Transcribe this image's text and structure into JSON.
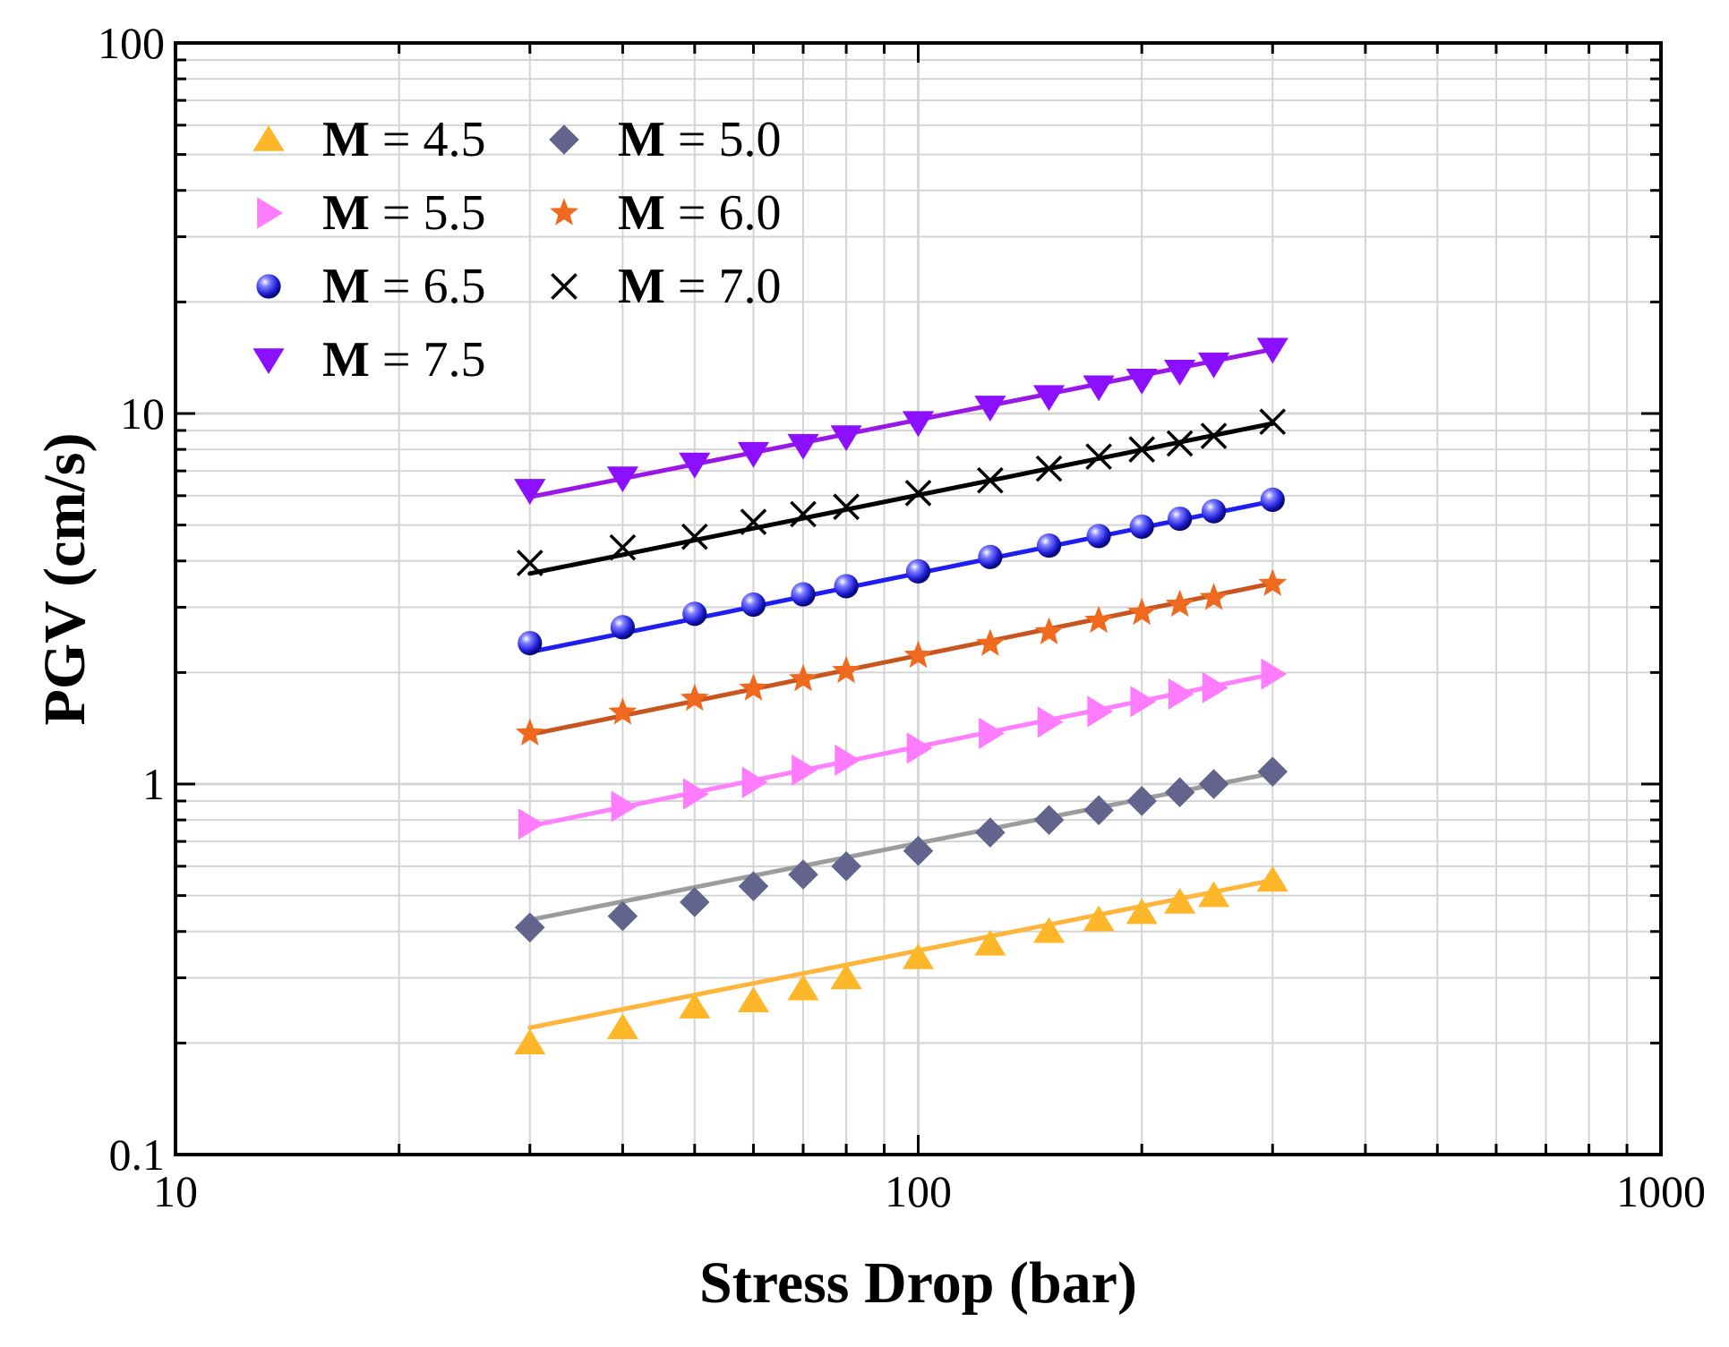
{
  "chart_data": {
    "type": "scatter",
    "xlabel": "Stress Drop (bar)",
    "ylabel": "PGV (cm/s)",
    "xscale": "log",
    "yscale": "log",
    "xlim": [
      10,
      1000
    ],
    "ylim": [
      0.1,
      100
    ],
    "grid": true,
    "legend_position": "top-left",
    "x_ticks": [
      "10",
      "100",
      "1000"
    ],
    "y_ticks": [
      "0.1",
      "1",
      "10",
      "100"
    ],
    "x": [
      30,
      40,
      50,
      60,
      70,
      80,
      100,
      125,
      150,
      175,
      200,
      225,
      250,
      300
    ],
    "series": [
      {
        "name": "M = 4.5",
        "label_bold": "M",
        "label_rest": " = 4.5",
        "marker": "triangle-up",
        "color": "#FFB72A",
        "line_color": "#FFB43C",
        "values": [
          0.2,
          0.22,
          0.25,
          0.26,
          0.28,
          0.3,
          0.34,
          0.37,
          0.4,
          0.43,
          0.45,
          0.48,
          0.5,
          0.55
        ],
        "fit": [
          0.22,
          0.55
        ]
      },
      {
        "name": "M = 5.0",
        "label_bold": "M",
        "label_rest": " = 5.0",
        "marker": "diamond",
        "color": "#62648E",
        "line_color": "#9C9C9C",
        "values": [
          0.41,
          0.44,
          0.48,
          0.53,
          0.57,
          0.6,
          0.66,
          0.74,
          0.8,
          0.85,
          0.9,
          0.95,
          1.0,
          1.08
        ],
        "fit": [
          0.43,
          1.07
        ]
      },
      {
        "name": "M = 5.5",
        "label_bold": "M",
        "label_rest": " = 5.5",
        "marker": "triangle-right",
        "color": "#FF7CFF",
        "line_color": "#FF80FF",
        "values": [
          0.78,
          0.87,
          0.94,
          1.01,
          1.09,
          1.16,
          1.25,
          1.37,
          1.47,
          1.57,
          1.67,
          1.75,
          1.82,
          1.98
        ],
        "fit": [
          0.77,
          1.98
        ]
      },
      {
        "name": "M = 6.0",
        "label_bold": "M",
        "label_rest": " = 6.0",
        "marker": "star",
        "color": "#EF6A1E",
        "line_color": "#C8541E",
        "values": [
          1.37,
          1.56,
          1.7,
          1.81,
          1.92,
          2.02,
          2.22,
          2.39,
          2.57,
          2.76,
          2.9,
          3.05,
          3.18,
          3.47
        ],
        "fit": [
          1.36,
          3.48
        ]
      },
      {
        "name": "M = 6.5",
        "label_bold": "M",
        "label_rest": " = 6.5",
        "marker": "sphere",
        "color": "#2A2ADC",
        "line_color": "#1E1EF0",
        "values": [
          2.4,
          2.65,
          2.88,
          3.05,
          3.25,
          3.42,
          3.75,
          4.1,
          4.4,
          4.67,
          4.95,
          5.2,
          5.45,
          5.85
        ],
        "fit": [
          2.27,
          5.8
        ]
      },
      {
        "name": "M = 7.0",
        "label_bold": "M",
        "label_rest": " = 7.0",
        "marker": "cross",
        "color": "#000000",
        "line_color": "#000000",
        "values": [
          3.95,
          4.35,
          4.65,
          5.1,
          5.35,
          5.6,
          6.1,
          6.6,
          7.1,
          7.65,
          8.0,
          8.3,
          8.7,
          9.5
        ],
        "fit": [
          3.7,
          9.4
        ]
      },
      {
        "name": "M = 7.5",
        "label_bold": "M",
        "label_rest": " = 7.5",
        "marker": "triangle-down",
        "color": "#8C10FF",
        "line_color": "#9A18E6",
        "values": [
          6.2,
          6.7,
          7.3,
          7.8,
          8.2,
          8.65,
          9.45,
          10.4,
          11.1,
          11.8,
          12.3,
          13.0,
          13.6,
          14.9
        ],
        "fit": [
          5.95,
          14.9
        ]
      }
    ]
  }
}
